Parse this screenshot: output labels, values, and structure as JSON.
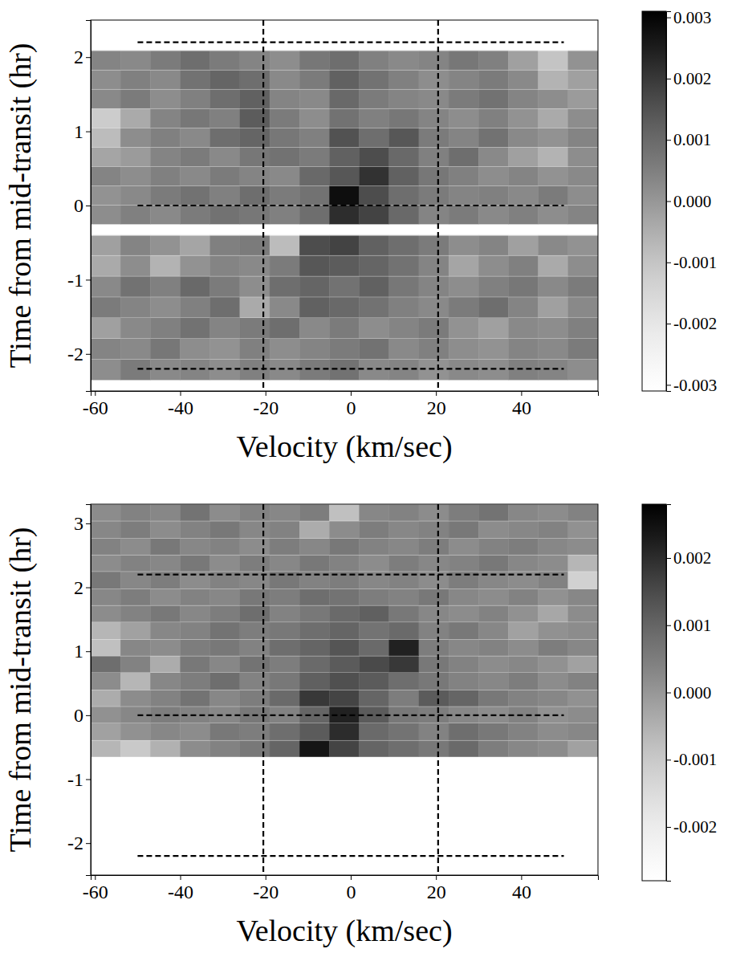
{
  "chart_data": [
    {
      "type": "heatmap",
      "x_label": "Velocity (km/sec)",
      "y_label": "Time from mid-transit (hr)",
      "xlim": [
        -61,
        58
      ],
      "xticks": [
        -60,
        -40,
        -20,
        0,
        20,
        40
      ],
      "ylim": [
        -2.5,
        2.5
      ],
      "yticks": [
        -2,
        -1,
        0,
        1,
        2
      ],
      "x_edges": [
        -61,
        -54,
        -47,
        -40,
        -33,
        -26,
        -19,
        -12,
        -5,
        2,
        9,
        16,
        23,
        30,
        37,
        44,
        51,
        58
      ],
      "rows": [
        {
          "y0": -2.35,
          "y1": -2.07,
          "values": [
            0.0002,
            0.0006,
            0.0003,
            0.0004,
            0.0002,
            0.0005,
            0.0003,
            0.0006,
            0.0008,
            0.0003,
            0.0004,
            0.0001,
            0.0003,
            0.0002,
            0.0005,
            0.0004,
            0.0002
          ]
        },
        {
          "y0": -2.07,
          "y1": -1.79,
          "values": [
            0.0004,
            0.0003,
            0.0007,
            0.0002,
            0.0001,
            0.0005,
            0.0002,
            0.0004,
            0.0006,
            0.0008,
            0.0003,
            0.0005,
            0.0002,
            0.0001,
            0.0004,
            0.0003,
            0.0006
          ]
        },
        {
          "y0": -1.79,
          "y1": -1.51,
          "values": [
            -0.0002,
            0.0003,
            0.0005,
            0.0008,
            0.0004,
            0.0006,
            0.0009,
            0.0003,
            0.0006,
            0.0002,
            0.0004,
            0.0006,
            0.0001,
            -0.0002,
            0.0003,
            0.0002,
            0.0005
          ]
        },
        {
          "y0": -1.51,
          "y1": -1.23,
          "values": [
            0.0006,
            0.0004,
            0.0002,
            0.0005,
            0.0009,
            -0.0004,
            0.0003,
            0.0012,
            0.001,
            0.0008,
            0.0005,
            0.0003,
            0.0006,
            0.0009,
            0.0004,
            -0.0002,
            0.0003
          ]
        },
        {
          "y0": -1.23,
          "y1": -0.95,
          "values": [
            0.0003,
            0.0008,
            0.0005,
            0.001,
            0.0006,
            0.0002,
            0.0009,
            0.0011,
            0.0008,
            0.0012,
            0.0007,
            0.0004,
            0.0002,
            0.0005,
            0.0007,
            0.0003,
            0.0006
          ]
        },
        {
          "y0": -0.95,
          "y1": -0.67,
          "values": [
            -0.0004,
            0.0002,
            -0.0006,
            0.0001,
            0.0004,
            0.0003,
            0.0006,
            0.0014,
            0.0013,
            0.0011,
            0.0008,
            0.0004,
            -0.0003,
            0.0002,
            0.0005,
            -0.0004,
            0.0002
          ]
        },
        {
          "y0": -0.67,
          "y1": -0.4,
          "values": [
            -0.0002,
            0.0004,
            0.0001,
            -0.0003,
            0.0005,
            0.0006,
            -0.0008,
            0.0016,
            0.0018,
            0.0012,
            0.0009,
            0.0006,
            0.0002,
            0.0004,
            -0.0002,
            0.0003,
            0.0001
          ]
        },
        {
          "y0": -0.25,
          "y1": 0.01,
          "values": [
            0.0002,
            0.0005,
            0.0003,
            0.0006,
            0.0008,
            0.0007,
            0.0005,
            0.0009,
            0.0022,
            0.0018,
            0.001,
            0.0004,
            0.0006,
            0.0003,
            0.0005,
            0.0002,
            0.0004
          ]
        },
        {
          "y0": 0.01,
          "y1": 0.27,
          "values": [
            0.0001,
            0.0003,
            0.0006,
            0.0008,
            0.0005,
            0.0009,
            0.0006,
            0.0008,
            0.0028,
            0.0016,
            0.0009,
            0.0006,
            0.0004,
            0.0005,
            0.0003,
            0.0006,
            0.0002
          ]
        },
        {
          "y0": 0.27,
          "y1": 0.53,
          "values": [
            0.0004,
            0.0002,
            0.0005,
            0.0003,
            0.0006,
            0.0004,
            0.0003,
            0.001,
            0.0014,
            0.0021,
            0.0012,
            0.0007,
            0.0005,
            0.0002,
            0.0004,
            0.0001,
            0.0003
          ]
        },
        {
          "y0": 0.53,
          "y1": 0.79,
          "values": [
            -0.0003,
            -0.0001,
            0.0004,
            0.0006,
            0.0003,
            0.0007,
            0.0008,
            0.0006,
            0.0012,
            0.0016,
            0.001,
            0.0005,
            0.0009,
            0.0003,
            -0.0002,
            -0.0006,
            0.0002
          ]
        },
        {
          "y0": 0.79,
          "y1": 1.05,
          "values": [
            -0.0008,
            0.0002,
            0.0005,
            0.0003,
            0.0009,
            0.0011,
            0.0007,
            0.0005,
            0.0015,
            0.0009,
            0.0014,
            0.0006,
            0.0004,
            0.0008,
            0.0003,
            0.0001,
            0.0004
          ]
        },
        {
          "y0": 1.05,
          "y1": 1.31,
          "values": [
            -0.0012,
            -0.0004,
            0.0004,
            0.0007,
            0.0005,
            0.0013,
            0.0006,
            0.0002,
            0.0008,
            0.0005,
            0.0007,
            0.0004,
            0.0002,
            0.0005,
            0.0001,
            -0.0004,
            0.0002
          ]
        },
        {
          "y0": 1.31,
          "y1": 1.57,
          "values": [
            0.0003,
            0.0006,
            0.0002,
            0.0005,
            0.0009,
            0.0012,
            0.0004,
            0.0003,
            0.001,
            0.0006,
            0.0004,
            0.0003,
            0.0006,
            0.0008,
            0.0004,
            0.0002,
            -0.0001
          ]
        },
        {
          "y0": 1.57,
          "y1": 1.83,
          "values": [
            0.0002,
            0.0005,
            0.0003,
            0.0008,
            0.0011,
            0.0009,
            0.0003,
            0.0006,
            0.0012,
            0.0008,
            0.0005,
            0.0002,
            0.0004,
            0.0006,
            0.0003,
            -0.0006,
            -0.0002
          ]
        },
        {
          "y0": 1.83,
          "y1": 2.09,
          "values": [
            0.0004,
            0.0003,
            0.0006,
            0.0009,
            0.0006,
            0.0004,
            0.0002,
            0.0007,
            0.0009,
            0.0005,
            0.0003,
            0.0004,
            0.0007,
            0.0005,
            -0.0002,
            -0.001,
            0.0001
          ]
        }
      ],
      "colorbar": {
        "range": [
          -0.0031,
          0.0031
        ],
        "ticks": [
          -0.003,
          -0.002,
          -0.001,
          {
            "value": 0,
            "label": "0.000"
          },
          0.001,
          0.002,
          0.003
        ]
      },
      "vlines": [
        -20.5,
        20.5
      ],
      "hlines": [
        -2.2,
        0,
        2.2
      ],
      "hline_xrange": [
        -50,
        50
      ]
    },
    {
      "type": "heatmap",
      "x_label": "Velocity (km/sec)",
      "y_label": "Time from mid-transit (hr)",
      "xlim": [
        -61,
        58
      ],
      "xticks": [
        -60,
        -40,
        -20,
        0,
        20,
        40
      ],
      "ylim": [
        -2.5,
        3.3
      ],
      "yticks": [
        -2,
        -1,
        0,
        1,
        2,
        3
      ],
      "x_edges": [
        -61,
        -54,
        -47,
        -40,
        -33,
        -26,
        -19,
        -12,
        -5,
        2,
        9,
        16,
        23,
        30,
        37,
        44,
        51,
        58
      ],
      "rows": [
        {
          "y0": -0.65,
          "y1": -0.39,
          "values": [
            -0.0006,
            -0.001,
            -0.0005,
            0.0002,
            0.0004,
            0.0006,
            0.001,
            0.0024,
            0.0016,
            0.001,
            0.0008,
            0.0006,
            0.0009,
            0.0005,
            0.0003,
            0.0002,
            -0.0002
          ]
        },
        {
          "y0": -0.39,
          "y1": -0.12,
          "values": [
            -0.0002,
            0.0001,
            0.0003,
            0.0002,
            0.0006,
            0.0005,
            0.0008,
            0.0012,
            0.002,
            0.0009,
            0.0007,
            0.0004,
            0.0008,
            0.0006,
            0.0004,
            0.0002,
            0.0003
          ]
        },
        {
          "y0": -0.12,
          "y1": 0.14,
          "values": [
            0.0001,
            0.0003,
            0.0005,
            0.0004,
            0.0003,
            0.0006,
            0.0004,
            0.001,
            0.0022,
            0.0012,
            0.0006,
            0.0005,
            0.0003,
            0.0002,
            0.0004,
            0.0001,
            0.0002
          ]
        },
        {
          "y0": 0.14,
          "y1": 0.4,
          "values": [
            -0.0004,
            0.0002,
            0.0004,
            0.0007,
            0.0003,
            0.0005,
            0.0009,
            0.0018,
            0.0016,
            0.001,
            0.0005,
            0.0012,
            0.001,
            0.0006,
            0.0004,
            0.0003,
            0.0001
          ]
        },
        {
          "y0": 0.4,
          "y1": 0.67,
          "values": [
            0.0002,
            -0.0006,
            0.0003,
            0.0005,
            0.0008,
            0.0004,
            0.0006,
            0.0011,
            0.0014,
            0.0012,
            0.0008,
            0.0006,
            0.0004,
            0.0003,
            0.0005,
            0.0002,
            0.0004
          ]
        },
        {
          "y0": 0.67,
          "y1": 0.93,
          "values": [
            0.0008,
            0.0004,
            -0.0004,
            0.0006,
            0.0003,
            0.0007,
            0.0005,
            0.0009,
            0.0012,
            0.0015,
            0.0018,
            0.0006,
            0.0004,
            0.0002,
            0.0003,
            0.0001,
            -0.0002
          ]
        },
        {
          "y0": 0.93,
          "y1": 1.19,
          "values": [
            -0.0008,
            0.0003,
            0.0002,
            0.0005,
            0.0006,
            0.0004,
            0.0008,
            0.001,
            0.0013,
            0.0009,
            0.0022,
            0.0005,
            0.0003,
            0.0004,
            0.0002,
            0.0005,
            0.0003
          ]
        },
        {
          "y0": 1.19,
          "y1": 1.46,
          "values": [
            -0.0006,
            -0.0002,
            0.0003,
            0.0004,
            0.0007,
            0.0005,
            0.0006,
            0.0008,
            0.001,
            0.0007,
            0.0009,
            0.0004,
            0.0006,
            0.0003,
            -0.0002,
            0.0001,
            0.0002
          ]
        },
        {
          "y0": 1.46,
          "y1": 1.72,
          "values": [
            0.0002,
            0.0004,
            0.0006,
            0.0003,
            0.0005,
            0.0008,
            0.0004,
            0.0006,
            0.0009,
            0.0011,
            0.0006,
            0.0003,
            0.0002,
            0.0004,
            0.0001,
            -0.0003,
            0.0002
          ]
        },
        {
          "y0": 1.72,
          "y1": 1.98,
          "values": [
            0.0003,
            0.0005,
            0.0002,
            0.0004,
            0.0003,
            0.0006,
            0.0005,
            0.0008,
            0.0007,
            0.0005,
            0.0004,
            0.0006,
            0.0003,
            0.0002,
            0.0004,
            0.0001,
            0.0003
          ]
        },
        {
          "y0": 1.98,
          "y1": 2.25,
          "values": [
            0.0006,
            0.0003,
            0.0005,
            0.0002,
            0.0004,
            0.0003,
            0.0006,
            0.0004,
            0.0005,
            0.0003,
            0.0004,
            0.0002,
            0.0005,
            0.0003,
            0.0002,
            0.0004,
            -0.0012
          ]
        },
        {
          "y0": 2.25,
          "y1": 2.51,
          "values": [
            0.0002,
            0.0004,
            0.0003,
            0.0006,
            0.0002,
            0.0005,
            0.0003,
            0.0006,
            0.0004,
            0.0002,
            0.0005,
            0.0003,
            0.0004,
            0.0006,
            0.0003,
            0.0002,
            -0.0006
          ]
        },
        {
          "y0": 2.51,
          "y1": 2.77,
          "values": [
            0.0004,
            0.0002,
            0.0006,
            0.0003,
            0.0004,
            0.0002,
            0.0005,
            0.0003,
            0.0006,
            0.0004,
            0.0003,
            0.0005,
            0.0002,
            0.0004,
            0.0005,
            0.0003,
            0.0002
          ]
        },
        {
          "y0": 2.77,
          "y1": 3.04,
          "values": [
            0.0003,
            0.0005,
            0.0002,
            0.0004,
            0.0006,
            0.0003,
            0.0004,
            -0.0004,
            0.0002,
            0.0005,
            0.0003,
            0.0004,
            0.0006,
            0.0002,
            0.0003,
            0.0004,
            0.0001
          ]
        },
        {
          "y0": 3.04,
          "y1": 3.3,
          "values": [
            0.0002,
            0.0004,
            0.0003,
            0.0007,
            0.0002,
            0.0004,
            0.0003,
            0.0005,
            -0.0008,
            0.0003,
            0.0004,
            0.0002,
            0.0005,
            0.0007,
            0.0003,
            0.0002,
            0.0004
          ]
        }
      ],
      "colorbar": {
        "range": [
          -0.0028,
          0.0028
        ],
        "ticks": [
          -0.002,
          -0.001,
          {
            "value": 0,
            "label": "0.000"
          },
          0.001,
          0.002
        ]
      },
      "vlines": [
        -20.5,
        20.5
      ],
      "hlines": [
        -2.2,
        0,
        2.2
      ],
      "hline_xrange": [
        -50,
        50
      ]
    }
  ]
}
